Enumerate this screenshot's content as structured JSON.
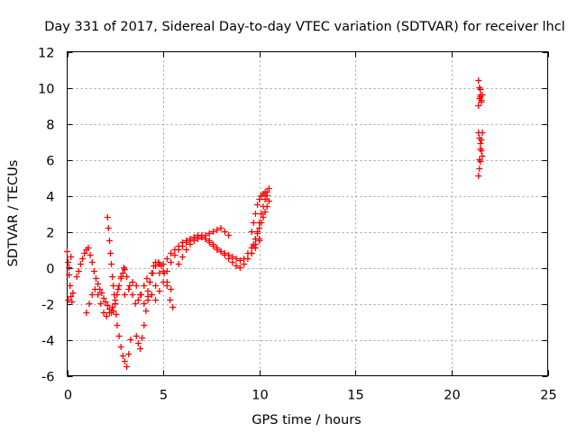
{
  "chart_data": {
    "type": "scatter",
    "title": "Day 331 of 2017, Sidereal Day-to-day VTEC variation (SDTVAR) for receiver lhcl",
    "xlabel": "GPS time / hours",
    "ylabel": "SDTVAR / TECUs",
    "xlim": [
      0,
      25
    ],
    "ylim": [
      -6,
      12
    ],
    "xticks": [
      0,
      5,
      10,
      15,
      20,
      25
    ],
    "yticks": [
      -6,
      -4,
      -2,
      0,
      2,
      4,
      6,
      8,
      10,
      12
    ],
    "grid": true,
    "marker": "+",
    "color": "#ff0000",
    "series": [
      {
        "name": "SDTVAR",
        "x": [
          0.0,
          0.05,
          0.1,
          0.15,
          0.2,
          0.25,
          0.3,
          0.2,
          0.1,
          0.05,
          0.5,
          0.6,
          0.7,
          0.8,
          0.9,
          1.0,
          1.1,
          1.2,
          1.3,
          1.4,
          1.5,
          1.6,
          1.7,
          1.8,
          1.9,
          2.0,
          2.1,
          2.2,
          2.3,
          2.4,
          2.5,
          2.6,
          2.7,
          2.8,
          2.9,
          3.0,
          1.0,
          1.15,
          1.3,
          1.45,
          1.6,
          1.75,
          1.9,
          2.05,
          2.2,
          2.35,
          2.5,
          2.65,
          2.8,
          2.95,
          3.1,
          3.25,
          3.4,
          3.55,
          3.7,
          3.85,
          4.0,
          4.15,
          4.3,
          4.45,
          4.6,
          4.75,
          4.9,
          5.05,
          5.2,
          5.35,
          5.5,
          2.1,
          2.15,
          2.2,
          2.25,
          2.3,
          2.35,
          2.4,
          2.45,
          2.5,
          2.55,
          2.6,
          2.7,
          2.8,
          2.9,
          3.0,
          3.1,
          3.2,
          3.3,
          3.0,
          3.2,
          3.4,
          3.6,
          3.8,
          4.0,
          4.2,
          4.4,
          4.6,
          4.8,
          5.0,
          5.2,
          5.4,
          5.6,
          5.8,
          6.0,
          6.2,
          6.4,
          6.6,
          6.8,
          7.0,
          7.2,
          7.4,
          7.6,
          7.8,
          8.0,
          8.2,
          8.4,
          8.6,
          8.8,
          9.0,
          9.2,
          9.4,
          9.6,
          9.8,
          10.0,
          4.2,
          4.4,
          4.6,
          4.8,
          5.0,
          5.2,
          5.4,
          5.6,
          5.8,
          6.0,
          6.2,
          6.4,
          6.6,
          6.8,
          7.0,
          7.2,
          7.4,
          7.6,
          7.8,
          8.0,
          8.2,
          8.4,
          8.6,
          8.8,
          9.0,
          9.2,
          9.4,
          9.6,
          9.8,
          10.0,
          3.6,
          3.7,
          3.8,
          3.9,
          4.0,
          4.1,
          4.2,
          4.3,
          4.4,
          4.5,
          4.6,
          4.8,
          5.0,
          5.2,
          5.4,
          5.8,
          6.0,
          6.2,
          6.4,
          6.6,
          6.8,
          7.0,
          7.2,
          7.4,
          7.6,
          7.8,
          8.0,
          8.2,
          8.4,
          9.6,
          9.7,
          9.8,
          9.9,
          10.0,
          10.1,
          10.2,
          10.3,
          10.4,
          10.5,
          10.4,
          10.3,
          10.2,
          10.1,
          10.0,
          9.9,
          9.8,
          9.7,
          9.6,
          9.7,
          9.8,
          9.9,
          10.0,
          10.1,
          10.2,
          10.3,
          10.4,
          10.5,
          21.4,
          21.45,
          21.5,
          21.55,
          21.6,
          21.5,
          21.45,
          21.4,
          21.5,
          21.55,
          21.4,
          21.45,
          21.5,
          21.55,
          21.6,
          21.5,
          21.45,
          21.4,
          21.5,
          21.55,
          21.6,
          21.45
        ],
        "y": [
          0.9,
          0.3,
          -0.4,
          -1.0,
          -1.6,
          -1.9,
          -1.4,
          0.6,
          0.0,
          -1.8,
          -0.5,
          -0.2,
          0.2,
          0.5,
          0.8,
          1.0,
          1.1,
          0.7,
          0.3,
          -0.2,
          -0.6,
          -0.9,
          -1.2,
          -1.4,
          -1.7,
          -1.9,
          -2.1,
          -2.3,
          -2.5,
          -2.4,
          -2.0,
          -1.5,
          -1.0,
          -0.6,
          -0.3,
          -0.1,
          -2.5,
          -2.0,
          -1.5,
          -1.2,
          -1.5,
          -2.0,
          -2.5,
          -2.7,
          -2.5,
          -2.2,
          -1.8,
          -1.2,
          -0.5,
          0.0,
          -0.5,
          -1.0,
          -1.5,
          -2.0,
          -1.8,
          -1.5,
          -1.0,
          -0.6,
          -0.8,
          -0.3,
          0.1,
          0.3,
          0.1,
          -0.3,
          -1.0,
          -1.8,
          -2.2,
          2.8,
          2.2,
          1.5,
          0.8,
          0.2,
          -0.5,
          -1.0,
          -1.5,
          -2.0,
          -2.6,
          -3.2,
          -3.8,
          -4.4,
          -4.9,
          -5.2,
          -5.5,
          -4.8,
          -4.0,
          -1.5,
          -1.2,
          -0.8,
          -1.0,
          -1.5,
          -2.0,
          -1.8,
          -1.5,
          -1.0,
          -0.3,
          0.2,
          0.5,
          0.8,
          1.0,
          1.2,
          1.4,
          1.5,
          1.6,
          1.7,
          1.8,
          1.7,
          1.6,
          1.5,
          1.3,
          1.1,
          0.9,
          0.7,
          0.5,
          0.3,
          0.1,
          0.0,
          0.2,
          0.5,
          0.8,
          1.1,
          1.5,
          -1.3,
          -1.5,
          -1.8,
          -1.3,
          -0.8,
          -0.2,
          0.3,
          0.7,
          1.0,
          1.2,
          1.4,
          1.5,
          1.6,
          1.7,
          1.8,
          1.6,
          1.4,
          1.2,
          1.0,
          0.9,
          0.8,
          0.7,
          0.6,
          0.5,
          0.4,
          0.5,
          0.8,
          1.1,
          1.3,
          1.6,
          -3.8,
          -4.2,
          -4.5,
          -3.9,
          -3.2,
          -2.4,
          -1.6,
          -0.8,
          -0.3,
          0.1,
          0.3,
          0.2,
          -0.2,
          -0.8,
          -1.2,
          0.2,
          0.6,
          1.0,
          1.3,
          1.5,
          1.6,
          1.7,
          1.8,
          1.9,
          2.0,
          2.1,
          2.2,
          2.0,
          1.8,
          2.0,
          2.5,
          3.0,
          3.5,
          3.8,
          4.0,
          4.1,
          4.2,
          4.0,
          3.7,
          3.4,
          3.1,
          2.8,
          2.5,
          2.2,
          1.9,
          1.6,
          1.3,
          0.8,
          1.2,
          1.6,
          2.0,
          2.5,
          3.0,
          3.4,
          3.8,
          4.2,
          4.4,
          10.4,
          10.0,
          9.6,
          9.2,
          9.6,
          9.9,
          9.4,
          9.0,
          9.5,
          9.3,
          7.5,
          7.2,
          6.9,
          6.5,
          6.2,
          5.9,
          5.5,
          5.1,
          6.6,
          7.1,
          7.5,
          6.0
        ]
      }
    ]
  }
}
